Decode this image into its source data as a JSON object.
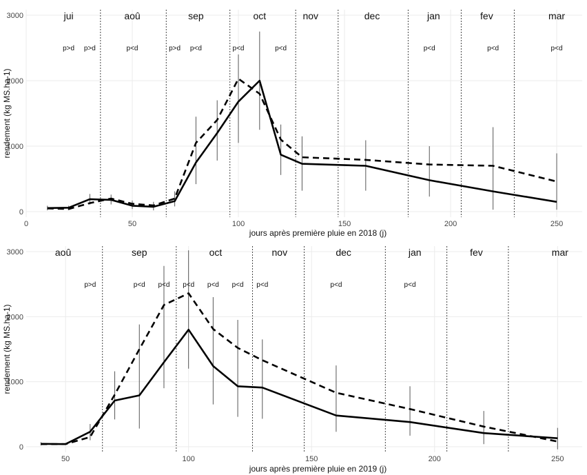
{
  "chart_data": [
    {
      "type": "line",
      "xlabel": "jours après première pluie en 2018 (j)",
      "ylabel": "rendement (kg MS.ha-1)",
      "xlim": [
        0,
        262
      ],
      "ylim": [
        0,
        3000
      ],
      "x_ticks": [
        0,
        50,
        100,
        150,
        200,
        250
      ],
      "y_ticks": [
        0,
        1000,
        2000,
        3000
      ],
      "grid": true,
      "month_boundaries": [
        35,
        66,
        96,
        127,
        147,
        180,
        205,
        230
      ],
      "months": [
        {
          "label": "jui",
          "x": 20
        },
        {
          "label": "aoû",
          "x": 50
        },
        {
          "label": "sep",
          "x": 80
        },
        {
          "label": "oct",
          "x": 110
        },
        {
          "label": "nov",
          "x": 134
        },
        {
          "label": "dec",
          "x": 163
        },
        {
          "label": "jan",
          "x": 192
        },
        {
          "label": "fev",
          "x": 217
        },
        {
          "label": "mar",
          "x": 250
        }
      ],
      "significance": [
        {
          "label": "p>d",
          "x": 20
        },
        {
          "label": "p>d",
          "x": 30
        },
        {
          "label": "p<d",
          "x": 50
        },
        {
          "label": "p>d",
          "x": 70
        },
        {
          "label": "p<d",
          "x": 80
        },
        {
          "label": "p<d",
          "x": 100
        },
        {
          "label": "p<d",
          "x": 120
        },
        {
          "label": "p<d",
          "x": 190
        },
        {
          "label": "p<d",
          "x": 220
        },
        {
          "label": "p<d",
          "x": 250
        }
      ],
      "series": [
        {
          "style": "solid",
          "x": [
            10,
            20,
            30,
            40,
            50,
            60,
            70,
            80,
            90,
            100,
            110,
            120,
            130,
            160,
            190,
            220,
            250
          ],
          "y": [
            55,
            60,
            190,
            180,
            90,
            75,
            160,
            750,
            1200,
            1680,
            2000,
            870,
            730,
            700,
            480,
            310,
            150
          ]
        },
        {
          "style": "dashed",
          "x": [
            10,
            20,
            30,
            40,
            50,
            60,
            70,
            80,
            90,
            100,
            110,
            120,
            130,
            160,
            190,
            220,
            250
          ],
          "y": [
            50,
            40,
            130,
            200,
            120,
            95,
            200,
            1050,
            1400,
            2030,
            1800,
            1100,
            830,
            790,
            720,
            700,
            460
          ]
        }
      ],
      "error_bars": [
        {
          "x": 10,
          "low": 20,
          "high": 90
        },
        {
          "x": 20,
          "low": 25,
          "high": 90
        },
        {
          "x": 30,
          "low": 110,
          "high": 270
        },
        {
          "x": 40,
          "low": 110,
          "high": 260
        },
        {
          "x": 50,
          "low": 40,
          "high": 170
        },
        {
          "x": 60,
          "low": 20,
          "high": 150
        },
        {
          "x": 70,
          "low": 80,
          "high": 310
        },
        {
          "x": 80,
          "low": 420,
          "high": 1450
        },
        {
          "x": 90,
          "low": 780,
          "high": 1700
        },
        {
          "x": 100,
          "low": 1050,
          "high": 2400
        },
        {
          "x": 110,
          "low": 1250,
          "high": 2750
        },
        {
          "x": 120,
          "low": 560,
          "high": 1330
        },
        {
          "x": 130,
          "low": 320,
          "high": 1150
        },
        {
          "x": 160,
          "low": 320,
          "high": 1090
        },
        {
          "x": 190,
          "low": 230,
          "high": 1000
        },
        {
          "x": 220,
          "low": 30,
          "high": 1290
        },
        {
          "x": 250,
          "low": 30,
          "high": 890
        }
      ]
    },
    {
      "type": "line",
      "xlabel": "jours après première pluie en 2019 (j)",
      "ylabel": "rendement (kg MS.ha-1)",
      "xlim": [
        34,
        260
      ],
      "ylim": [
        0,
        3000
      ],
      "x_ticks": [
        50,
        100,
        150,
        200,
        250
      ],
      "y_ticks": [
        0,
        1000,
        2000,
        3000
      ],
      "grid": true,
      "month_boundaries": [
        65,
        95,
        126,
        147,
        180,
        205,
        230
      ],
      "months": [
        {
          "label": "aoû",
          "x": 49
        },
        {
          "label": "sep",
          "x": 80
        },
        {
          "label": "oct",
          "x": 111
        },
        {
          "label": "nov",
          "x": 137
        },
        {
          "label": "dec",
          "x": 163
        },
        {
          "label": "jan",
          "x": 192
        },
        {
          "label": "fev",
          "x": 217
        },
        {
          "label": "mar",
          "x": 251
        }
      ],
      "significance": [
        {
          "label": "p>d",
          "x": 60
        },
        {
          "label": "p<d",
          "x": 80
        },
        {
          "label": "p<d",
          "x": 90
        },
        {
          "label": "p<d",
          "x": 100
        },
        {
          "label": "p<d",
          "x": 110
        },
        {
          "label": "p<d",
          "x": 120
        },
        {
          "label": "p<d",
          "x": 130
        },
        {
          "label": "p<d",
          "x": 160
        },
        {
          "label": "p<d",
          "x": 190
        }
      ],
      "series": [
        {
          "style": "solid",
          "x": [
            40,
            50,
            60,
            70,
            80,
            90,
            100,
            110,
            120,
            130,
            160,
            190,
            220,
            250
          ],
          "y": [
            45,
            40,
            230,
            710,
            790,
            1300,
            1800,
            1240,
            930,
            910,
            480,
            380,
            210,
            130
          ]
        },
        {
          "style": "dashed",
          "x": [
            40,
            50,
            60,
            70,
            80,
            90,
            100,
            110,
            120,
            130,
            160,
            190,
            220,
            250
          ],
          "y": [
            40,
            40,
            150,
            800,
            1500,
            2180,
            2360,
            1810,
            1520,
            1330,
            830,
            580,
            310,
            80
          ]
        }
      ],
      "error_bars": [
        {
          "x": 40,
          "low": 20,
          "high": 70
        },
        {
          "x": 60,
          "low": 100,
          "high": 350
        },
        {
          "x": 70,
          "low": 420,
          "high": 1160
        },
        {
          "x": 80,
          "low": 280,
          "high": 1880
        },
        {
          "x": 90,
          "low": 900,
          "high": 2780
        },
        {
          "x": 100,
          "low": 1200,
          "high": 3020
        },
        {
          "x": 110,
          "low": 650,
          "high": 2300
        },
        {
          "x": 120,
          "low": 460,
          "high": 1950
        },
        {
          "x": 130,
          "low": 430,
          "high": 1650
        },
        {
          "x": 160,
          "low": 230,
          "high": 1250
        },
        {
          "x": 190,
          "low": 170,
          "high": 930
        },
        {
          "x": 220,
          "low": 40,
          "high": 550
        },
        {
          "x": 250,
          "low": -40,
          "high": 290
        }
      ]
    }
  ]
}
